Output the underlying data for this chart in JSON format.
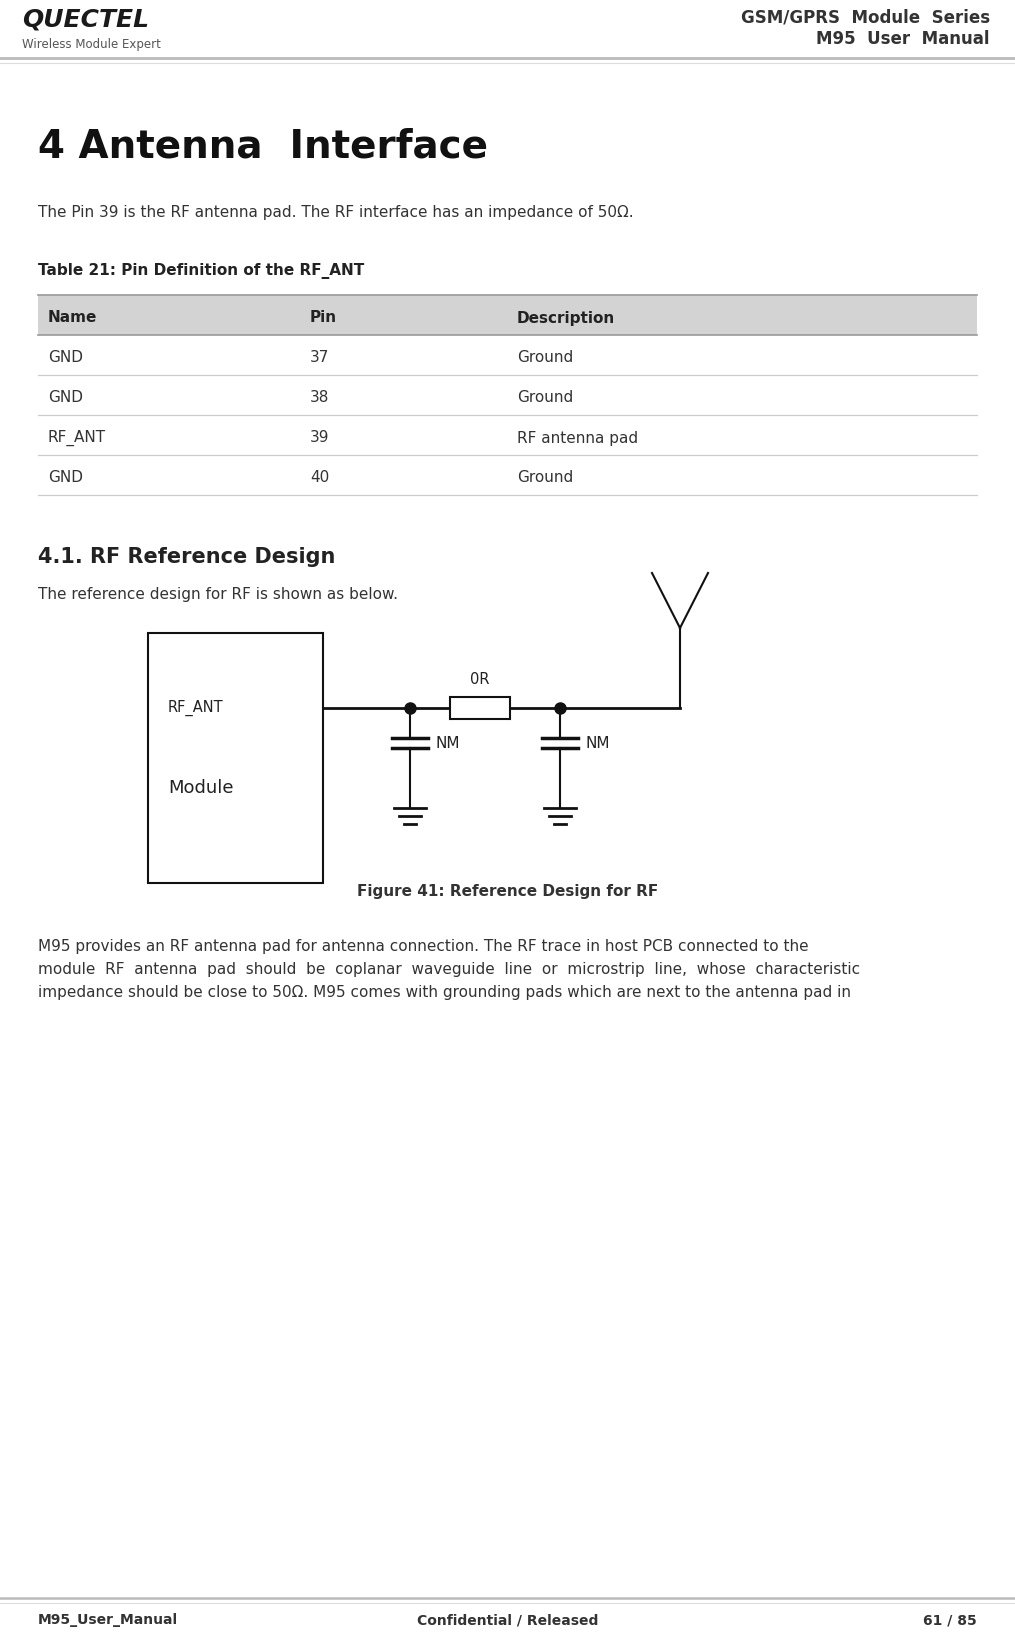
{
  "header_title_line1": "GSM/GPRS  Module  Series",
  "header_title_line2": "M95  User  Manual",
  "header_subtitle": "Wireless Module Expert",
  "footer_left": "M95_User_Manual",
  "footer_center": "Confidential / Released",
  "footer_right": "61 / 85",
  "chapter_title": "4 Antenna  Interface",
  "intro_text": "The Pin 39 is the RF antenna pad. The RF interface has an impedance of 50Ω.",
  "table_title": "Table 21: Pin Definition of the RF_ANT",
  "table_headers": [
    "Name",
    "Pin",
    "Description"
  ],
  "table_rows": [
    [
      "GND",
      "37",
      "Ground"
    ],
    [
      "GND",
      "38",
      "Ground"
    ],
    [
      "RF_ANT",
      "39",
      "RF antenna pad"
    ],
    [
      "GND",
      "40",
      "Ground"
    ]
  ],
  "section_title": "4.1. RF Reference Design",
  "section_text": "The reference design for RF is shown as below.",
  "figure_caption": "Figure 41: Reference Design for RF",
  "body_lines": [
    "M95 provides an RF antenna pad for antenna connection. The RF trace in host PCB connected to the",
    "module  RF  antenna  pad  should  be  coplanar  waveguide  line  or  microstrip  line,  whose  characteristic",
    "impedance should be close to 50Ω. M95 comes with grounding pads which are next to the antenna pad in"
  ],
  "bg_color": "#ffffff",
  "table_header_bg": "#d3d3d3",
  "line_color_dark": "#aaaaaa",
  "line_color_light": "#cccccc",
  "text_dark": "#222222",
  "text_mid": "#333333",
  "text_light": "#666666"
}
